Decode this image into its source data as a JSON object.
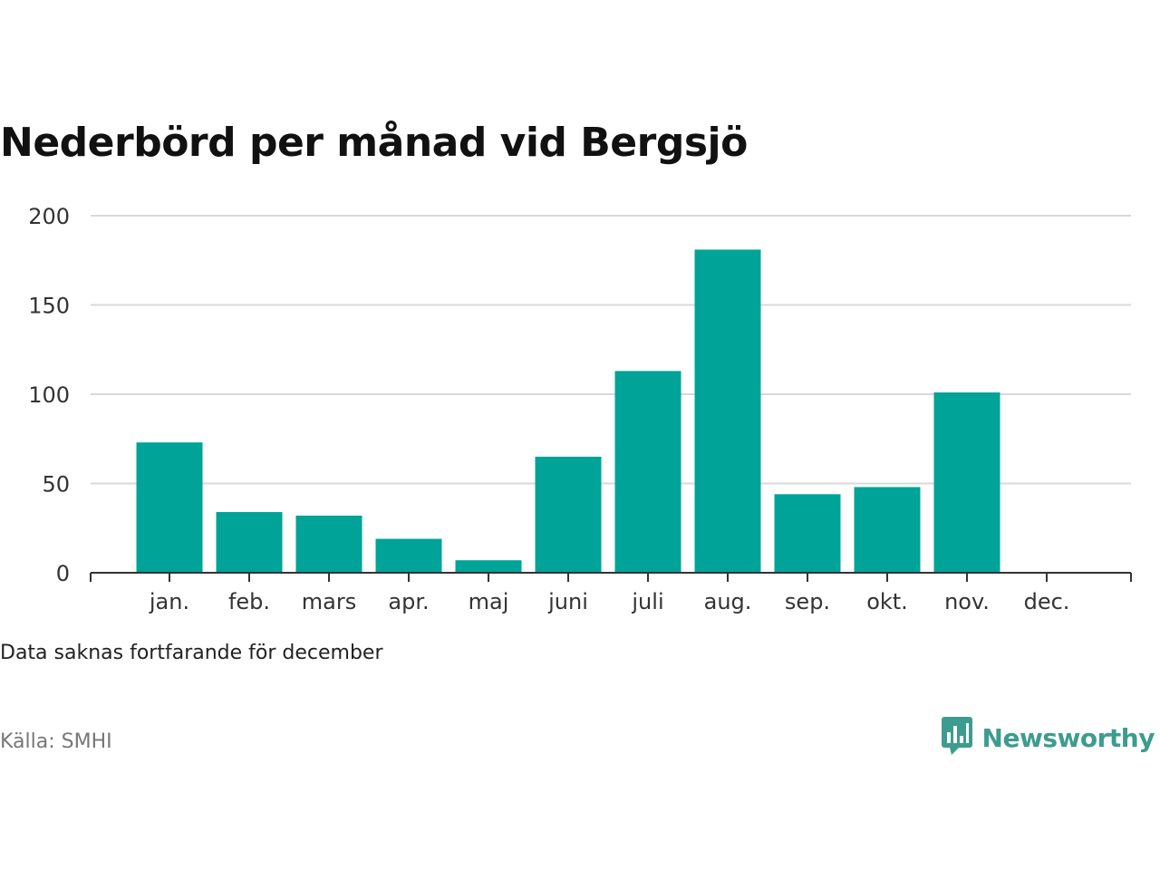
{
  "title": "Nederbörd per månad vid Bergsjö",
  "note": "Data saknas fortfarande för december",
  "source": "Källa: SMHI",
  "brand": {
    "name": "Newsworthy",
    "icon": "bar-chart-speech-bubble-icon",
    "color": "#3d9c8f"
  },
  "colors": {
    "bar": "#00a398",
    "grid": "#d9d9d9",
    "axis": "#333333"
  },
  "chart_data": {
    "type": "bar",
    "categories": [
      "jan.",
      "feb.",
      "mars",
      "apr.",
      "maj",
      "juni",
      "juli",
      "aug.",
      "sep.",
      "okt.",
      "nov.",
      "dec."
    ],
    "values": [
      73,
      34,
      32,
      19,
      7,
      65,
      113,
      181,
      44,
      48,
      101,
      null
    ],
    "ylim": [
      0,
      200
    ],
    "yticks": [
      0,
      50,
      100,
      150,
      200
    ],
    "grid": true,
    "legend": "none"
  }
}
